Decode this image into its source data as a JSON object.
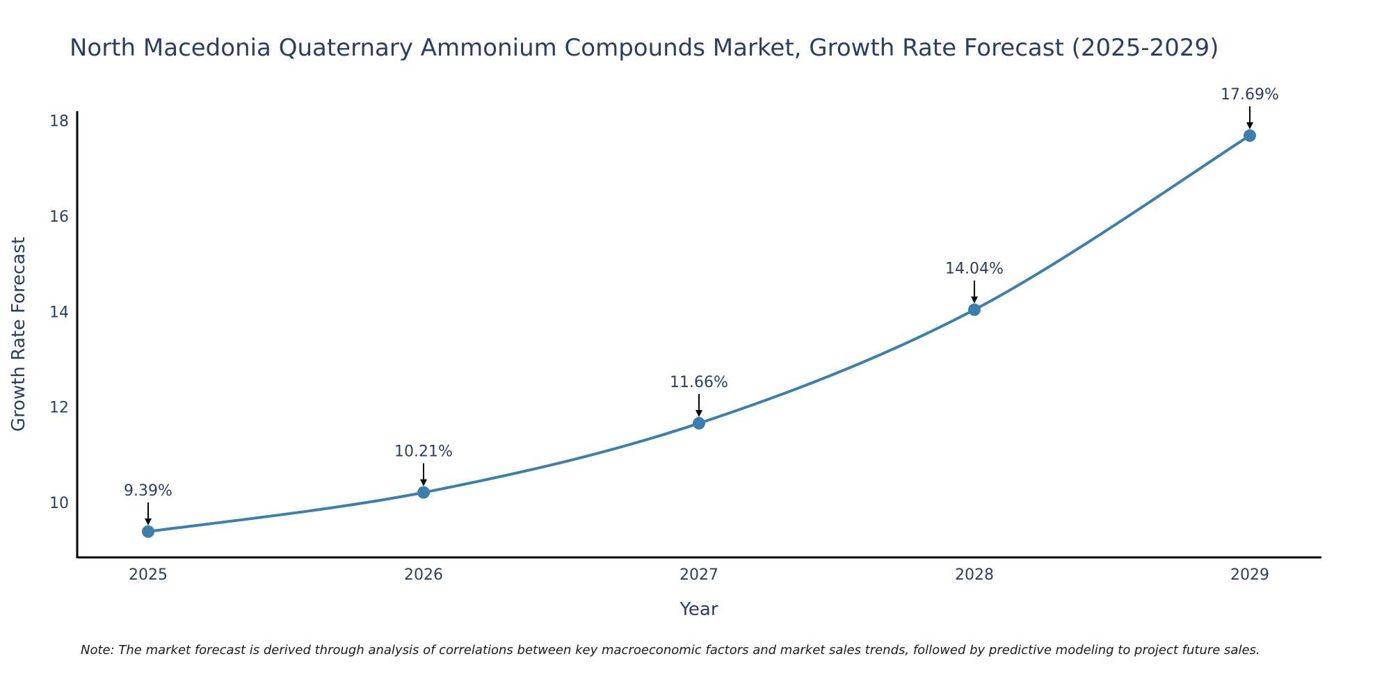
{
  "chart_data": {
    "type": "line",
    "title": "North Macedonia Quaternary Ammonium Compounds Market, Growth Rate Forecast (2025-2029)",
    "xlabel": "Year",
    "ylabel": "Growth Rate Forecast",
    "categories": [
      "2025",
      "2026",
      "2027",
      "2028",
      "2029"
    ],
    "values": [
      9.39,
      10.21,
      11.66,
      14.04,
      17.69
    ],
    "data_labels": [
      "9.39%",
      "10.21%",
      "11.66%",
      "14.04%",
      "17.69%"
    ],
    "y_ticks": [
      10,
      12,
      14,
      16,
      18
    ],
    "ylim": [
      8.85,
      18.2
    ],
    "grid": false,
    "line_color": "#3d7fab",
    "marker_color": "#3d7fab",
    "note": "Note: The market forecast is derived through analysis of correlations between key macroeconomic factors and market sales trends, followed by predictive modeling to project future sales."
  }
}
